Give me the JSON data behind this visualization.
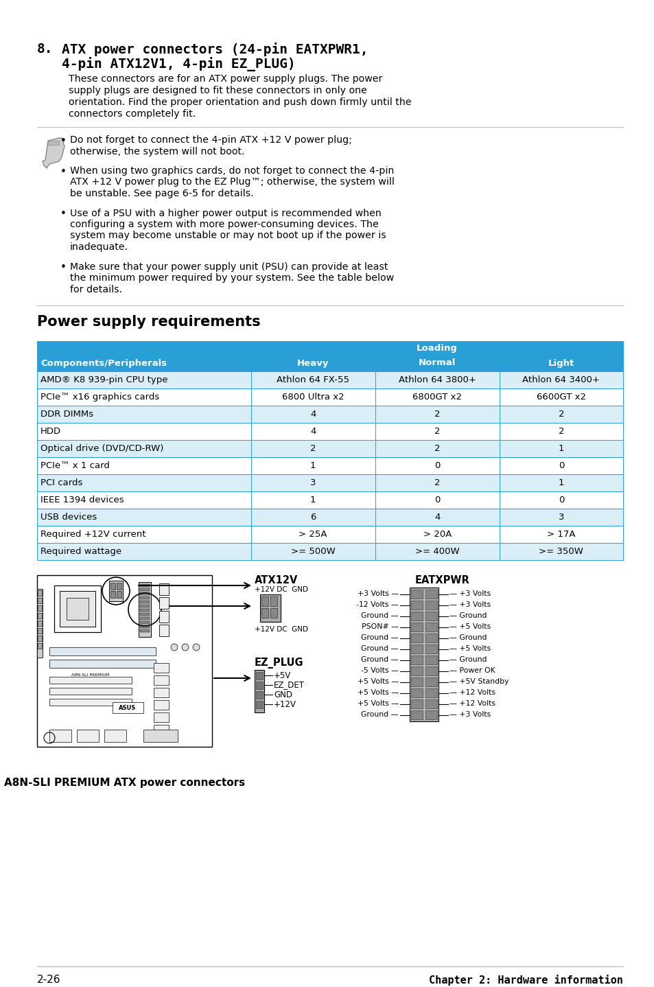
{
  "bg_color": "#ffffff",
  "section_number": "8.",
  "section_title_line1": "ATX power connectors (24-pin EATXPWR1,",
  "section_title_line2": "4-pin ATX12V1, 4-pin EZ_PLUG)",
  "body_lines": [
    "These connectors are for an ATX power supply plugs. The power",
    "supply plugs are designed to fit these connectors in only one",
    "orientation. Find the proper orientation and push down firmly until the",
    "connectors completely fit."
  ],
  "note_bullets": [
    [
      "Do not forget to connect the 4-pin ATX +12 V power plug;",
      "otherwise, the system will not boot."
    ],
    [
      "When using two graphics cards, do not forget to connect the 4-pin",
      "ATX +12 V power plug to the EZ Plug™; otherwise, the system will",
      "be unstable. See page 6-5 for details."
    ],
    [
      "Use of a PSU with a higher power output is recommended when",
      "configuring a system with more power-consuming devices. The",
      "system may become unstable or may not boot up if the power is",
      "inadequate."
    ],
    [
      "Make sure that your power supply unit (PSU) can provide at least",
      "the minimum power required by your system. See the table below",
      "for details."
    ]
  ],
  "section2_title": "Power supply requirements",
  "table_header_bg": "#2a9fd6",
  "table_header_text": "#ffffff",
  "table_row_bg_alt": "#daeef8",
  "table_row_bg": "#ffffff",
  "table_border": "#2a9fd6",
  "table_col0_header": "Components/Peripherals",
  "table_loading_header": "Loading",
  "table_col_headers": [
    "Heavy",
    "Normal",
    "Light"
  ],
  "table_rows": [
    [
      "AMD® K8 939-pin CPU type",
      "Athlon 64 FX-55",
      "Athlon 64 3800+",
      "Athlon 64 3400+"
    ],
    [
      "PCIe™ x16 graphics cards",
      "6800 Ultra x2",
      "6800GT x2",
      "6600GT x2"
    ],
    [
      "DDR DIMMs",
      "4",
      "2",
      "2"
    ],
    [
      "HDD",
      "4",
      "2",
      "2"
    ],
    [
      "Optical drive (DVD/CD-RW)",
      "2",
      "2",
      "1"
    ],
    [
      "PCIe™ x 1 card",
      "1",
      "0",
      "0"
    ],
    [
      "PCI cards",
      "3",
      "2",
      "1"
    ],
    [
      "IEEE 1394 devices",
      "1",
      "0",
      "0"
    ],
    [
      "USB devices",
      "6",
      "4",
      "3"
    ],
    [
      "Required +12V current",
      "> 25A",
      "> 20A",
      "> 17A"
    ],
    [
      "Required wattage",
      ">= 500W",
      ">= 400W",
      ">= 350W"
    ]
  ],
  "diagram_caption": "A8N-SLI PREMIUM ATX power connectors",
  "footer_left": "2-26",
  "footer_right": "Chapter 2: Hardware information",
  "atx12v_label": "ATX12V",
  "atx12v_sub1": "+12V DC  GND",
  "atx12v_sub2": "+12V DC  GND",
  "ezplug_label": "EZ_PLUG",
  "ezplug_pins": [
    "+5V",
    "EZ_DET",
    "GND",
    "+12V"
  ],
  "eatxpwr_label": "EATXPWR",
  "eatxpwr_left_pins": [
    "+3 Volts",
    "-12 Volts",
    "Ground",
    "PSON#",
    "Ground",
    "Ground",
    "Ground",
    "-5 Volts",
    "+5 Volts",
    "+5 Volts",
    "+5 Volts",
    "Ground"
  ],
  "eatxpwr_right_pins": [
    "+3 Volts",
    "+3 Volts",
    "Ground",
    "+5 Volts",
    "Ground",
    "+5 Volts",
    "Ground",
    "Power OK",
    "+5V Standby",
    "+12 Volts",
    "+12 Volts",
    "+3 Volts"
  ]
}
